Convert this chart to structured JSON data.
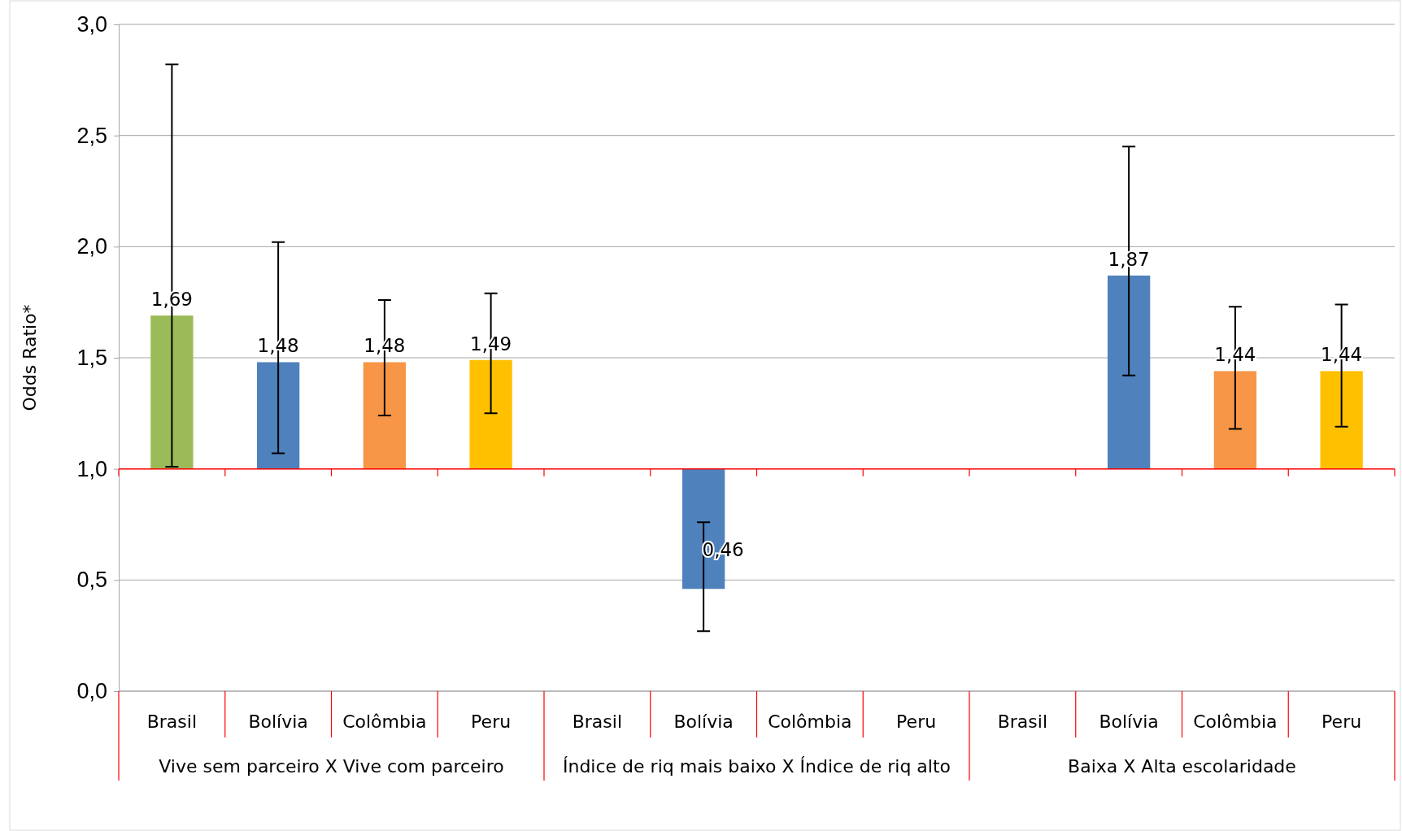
{
  "chart_data": {
    "type": "bar",
    "ylabel": "Odds Ratio*",
    "categories": [
      "Brasil",
      "Bolívia",
      "Colômbia",
      "Peru",
      "Brasil",
      "Bolívia",
      "Colômbia",
      "Peru",
      "Brasil",
      "Bolívia",
      "Colômbia",
      "Peru"
    ],
    "base": [
      1,
      1,
      1,
      1,
      null,
      1,
      null,
      null,
      null,
      1,
      1,
      1
    ],
    "values": [
      0.69,
      0.48,
      0.48,
      0.49,
      null,
      -0.54,
      null,
      null,
      null,
      0.87,
      0.44,
      0.44
    ],
    "value_labels": [
      "1,69",
      "1,48",
      "1,48",
      "1,49",
      null,
      "0,46",
      null,
      null,
      null,
      "1,87",
      "1,44",
      "1,44"
    ],
    "colors": [
      "#9bbb59",
      "#4f81bd",
      "#f79646",
      "#ffc000",
      null,
      "#4f81bd",
      null,
      null,
      null,
      "#4f81bd",
      "#f79646",
      "#ffc000"
    ],
    "ref_lines": [
      {
        "axis": "y",
        "value": 1,
        "color": "#ff0000"
      }
    ],
    "errors": [
      [
        1.01,
        2.82
      ],
      [
        1.07,
        2.02
      ],
      [
        1.24,
        1.76
      ],
      [
        1.25,
        1.79
      ],
      null,
      [
        0.27,
        0.76
      ],
      null,
      null,
      null,
      [
        1.42,
        2.45
      ],
      [
        1.18,
        1.73
      ],
      [
        1.19,
        1.74
      ]
    ],
    "annotations": [
      "Vive sem parceiro X Vive com parceiro",
      "Índice de riq mais baixo X Índice de riq alto",
      "Baixa  X Alta escolaridade"
    ],
    "ylim": [
      0,
      3
    ],
    "yticks": [
      {
        "value": 0,
        "label": "0,0"
      },
      {
        "value": 0.5,
        "label": "0,5"
      },
      {
        "value": 1,
        "label": "1,0"
      },
      {
        "value": 1.5,
        "label": "1,5"
      },
      {
        "value": 2,
        "label": "2,0"
      },
      {
        "value": 2.5,
        "label": "2,5"
      },
      {
        "value": 3,
        "label": "3,0"
      }
    ],
    "grid": "y"
  }
}
